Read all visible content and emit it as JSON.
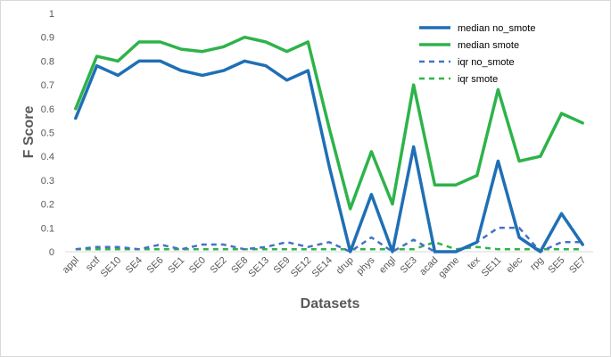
{
  "chart_data": {
    "type": "line",
    "xlabel": "Datasets",
    "ylabel": "F Score",
    "ylim": [
      0,
      1
    ],
    "yticks": [
      "0",
      "0.1",
      "0.2",
      "0.3",
      "0.4",
      "0.5",
      "0.6",
      "0.7",
      "0.8",
      "0.9",
      "1"
    ],
    "grid": false,
    "legend_position": "top-right",
    "categories": [
      "appl",
      "sctf",
      "SE10",
      "SE4",
      "SE6",
      "SE1",
      "SE0",
      "SE2",
      "SE8",
      "SE13",
      "SE9",
      "SE12",
      "SE14",
      "drup",
      "phys",
      "engl",
      "SE3",
      "acad",
      "game",
      "tex",
      "SE11",
      "elec",
      "rpg",
      "SE5",
      "SE7"
    ],
    "series": [
      {
        "name": "median no_smote",
        "color": "#1f6fb5",
        "dashed": false,
        "values": [
          0.56,
          0.78,
          0.74,
          0.8,
          0.8,
          0.76,
          0.74,
          0.76,
          0.8,
          0.78,
          0.72,
          0.76,
          0.36,
          0.0,
          0.24,
          0.0,
          0.44,
          0.0,
          0.0,
          0.04,
          0.38,
          0.06,
          0.0,
          0.16,
          0.03
        ]
      },
      {
        "name": "median smote",
        "color": "#2eb34a",
        "dashed": false,
        "values": [
          0.6,
          0.82,
          0.8,
          0.88,
          0.88,
          0.85,
          0.84,
          0.86,
          0.9,
          0.88,
          0.84,
          0.88,
          0.52,
          0.18,
          0.42,
          0.2,
          0.7,
          0.28,
          0.28,
          0.32,
          0.68,
          0.38,
          0.4,
          0.58,
          0.54
        ]
      },
      {
        "name": "iqr no_smote",
        "color": "#4472c4",
        "dashed": true,
        "values": [
          0.01,
          0.02,
          0.02,
          0.01,
          0.03,
          0.01,
          0.03,
          0.03,
          0.01,
          0.02,
          0.04,
          0.02,
          0.04,
          0.0,
          0.06,
          0.0,
          0.05,
          0.0,
          0.0,
          0.04,
          0.1,
          0.1,
          0.0,
          0.04,
          0.04
        ]
      },
      {
        "name": "iqr smote",
        "color": "#2eb34a",
        "dashed": true,
        "values": [
          0.01,
          0.01,
          0.01,
          0.01,
          0.01,
          0.01,
          0.01,
          0.01,
          0.01,
          0.01,
          0.01,
          0.01,
          0.01,
          0.01,
          0.01,
          0.01,
          0.01,
          0.04,
          0.01,
          0.02,
          0.01,
          0.01,
          0.01,
          0.01,
          0.01
        ]
      }
    ]
  }
}
